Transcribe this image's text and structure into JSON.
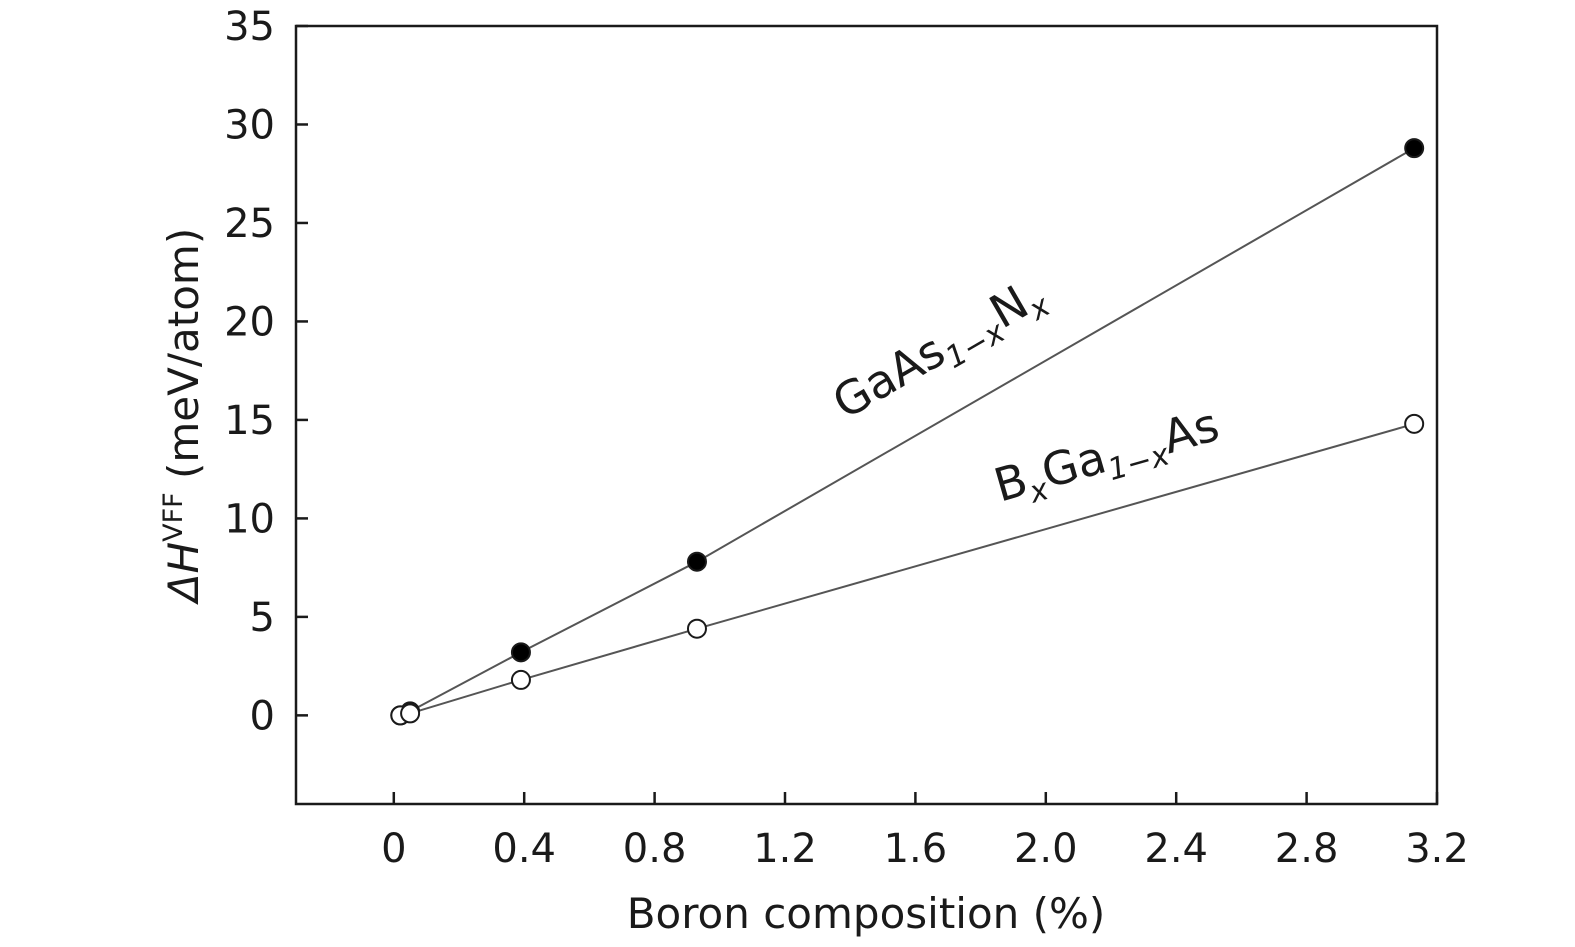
{
  "chart_data": {
    "type": "scatter",
    "x": {
      "label": "Boron composition (%)",
      "lim": [
        -0.3,
        3.2
      ],
      "ticks": [
        0,
        0.4,
        0.8,
        1.2,
        1.6,
        2.0,
        2.4,
        2.8,
        3.2
      ],
      "tick_labels": [
        "0",
        "0.4",
        "0.8",
        "1.2",
        "1.6",
        "2.0",
        "2.4",
        "2.8",
        "3.2"
      ]
    },
    "y": {
      "label_symbol": "ΔH",
      "label_superscript": "VFF",
      "label_unit": " (meV/atom)",
      "lim": [
        -4.5,
        35
      ],
      "ticks": [
        0,
        5,
        10,
        15,
        20,
        25,
        30,
        35
      ],
      "tick_labels": [
        "0",
        "5",
        "10",
        "15",
        "20",
        "25",
        "30",
        "35"
      ]
    },
    "grid": false,
    "series": [
      {
        "id": "gaasn",
        "label_parts": [
          "GaAs",
          "1−x",
          "N",
          "x"
        ],
        "marker": "filled-circle",
        "color": "#000000",
        "points": [
          {
            "x": 0.02,
            "y": 0.0
          },
          {
            "x": 0.05,
            "y": 0.2
          },
          {
            "x": 0.39,
            "y": 3.2
          },
          {
            "x": 0.93,
            "y": 7.8
          },
          {
            "x": 3.13,
            "y": 28.8
          }
        ]
      },
      {
        "id": "bgaas",
        "label_parts": [
          "B",
          "x",
          "Ga",
          "1−x",
          "As"
        ],
        "marker": "open-circle",
        "color": "#000000",
        "points": [
          {
            "x": 0.02,
            "y": 0.0
          },
          {
            "x": 0.05,
            "y": 0.1
          },
          {
            "x": 0.39,
            "y": 1.8
          },
          {
            "x": 0.93,
            "y": 4.4
          },
          {
            "x": 3.13,
            "y": 14.8
          }
        ]
      }
    ]
  }
}
